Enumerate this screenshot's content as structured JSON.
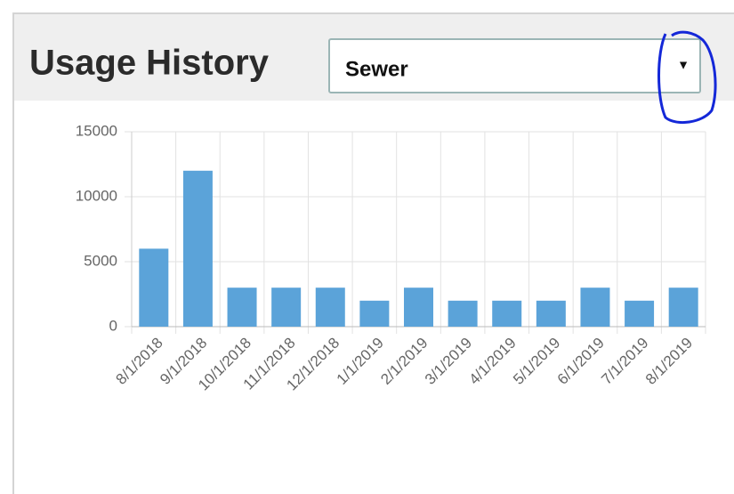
{
  "header": {
    "title": "Usage History",
    "select": "Sewer",
    "arrow": "▼"
  },
  "chart_data": {
    "type": "bar",
    "categories": [
      "8/1/2018",
      "9/1/2018",
      "10/1/2018",
      "11/1/2018",
      "12/1/2018",
      "1/1/2019",
      "2/1/2019",
      "3/1/2019",
      "4/1/2019",
      "5/1/2019",
      "6/1/2019",
      "7/1/2019",
      "8/1/2019"
    ],
    "values": [
      6000,
      12000,
      3000,
      3000,
      3000,
      2000,
      3000,
      2000,
      2000,
      2000,
      3000,
      2000,
      3000
    ],
    "color": "#5ba3d9",
    "ylim": [
      0,
      15000
    ],
    "yticks": [
      0,
      5000,
      10000,
      15000
    ],
    "grid": true
  }
}
